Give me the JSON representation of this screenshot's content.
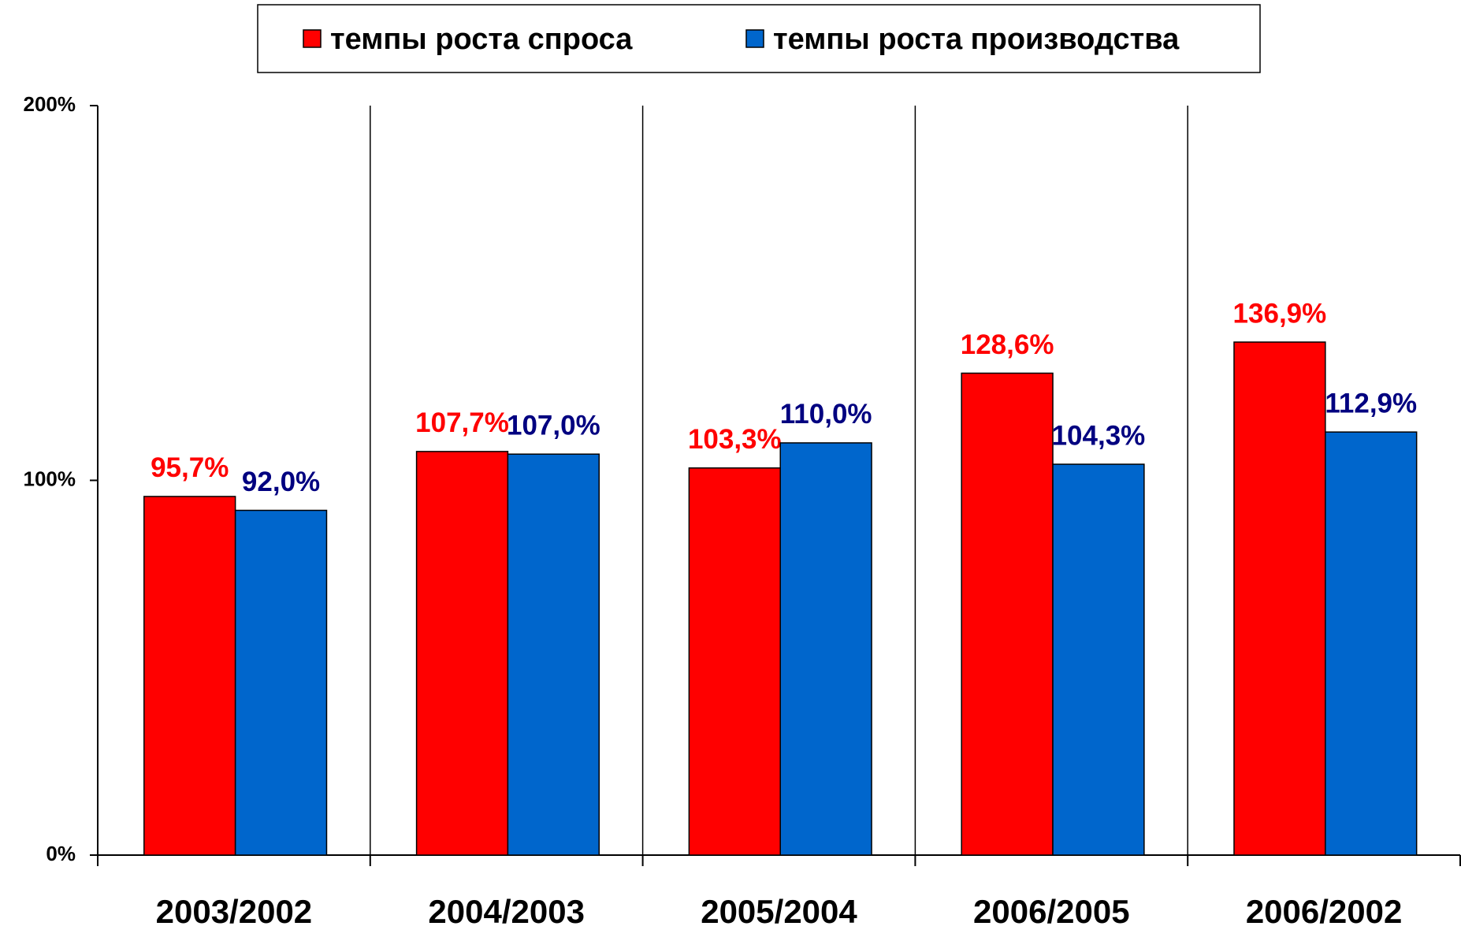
{
  "chart_data": {
    "type": "bar",
    "categories": [
      "2003/2002",
      "2004/2003",
      "2005/2004",
      "2006/2005",
      "2006/2002"
    ],
    "series": [
      {
        "name": "темпы роста спроса",
        "color": "#ff0000",
        "label_color": "#ff0000",
        "values": [
          95.7,
          107.7,
          103.3,
          128.6,
          136.9
        ],
        "value_labels": [
          "95,7%",
          "107,7%",
          "103,3%",
          "128,6%",
          "136,9%"
        ]
      },
      {
        "name": "темпы роста производства",
        "color": "#0066cc",
        "label_color": "#000080",
        "values": [
          92.0,
          107.0,
          110.0,
          104.3,
          112.9
        ],
        "value_labels": [
          "92,0%",
          "107,0%",
          "110,0%",
          "104,3%",
          "112,9%"
        ]
      }
    ],
    "ylim": [
      0,
      200
    ],
    "yticks": [
      {
        "value": 0,
        "label": "0%"
      },
      {
        "value": 100,
        "label": "100%"
      },
      {
        "value": 200,
        "label": "200%"
      }
    ],
    "legend": "top"
  }
}
